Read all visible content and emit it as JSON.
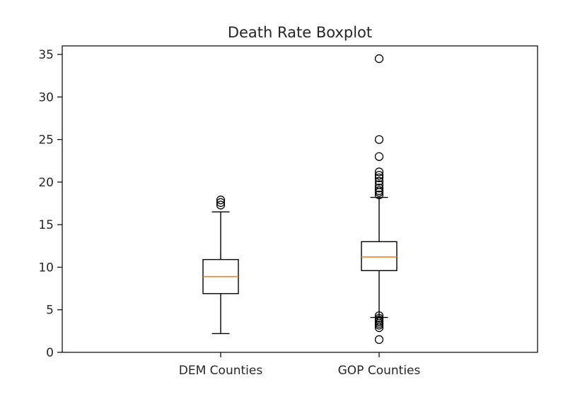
{
  "chart_data": {
    "type": "box",
    "title": "Death Rate Boxplot",
    "xlabel": "",
    "ylabel": "",
    "categories": [
      "DEM Counties",
      "GOP Counties"
    ],
    "ylim": [
      0,
      36
    ],
    "yticks": [
      0,
      5,
      10,
      15,
      20,
      25,
      30,
      35
    ],
    "grid": false,
    "median_color": "#ff7f0e",
    "series": [
      {
        "whisker_low": 2.2,
        "q1": 6.9,
        "median": 8.9,
        "q3": 10.9,
        "whisker_high": 16.5,
        "outliers": [
          17.3,
          17.6,
          17.9
        ]
      },
      {
        "whisker_low": 4.1,
        "q1": 9.6,
        "median": 11.2,
        "q3": 13.0,
        "whisker_high": 18.2,
        "outliers": [
          34.5,
          25.0,
          23.0,
          21.2,
          20.8,
          20.5,
          20.1,
          19.7,
          19.3,
          19.0,
          18.8,
          18.5,
          4.3,
          4.0,
          3.8,
          3.6,
          3.4,
          3.2,
          2.9,
          1.5
        ]
      }
    ]
  }
}
